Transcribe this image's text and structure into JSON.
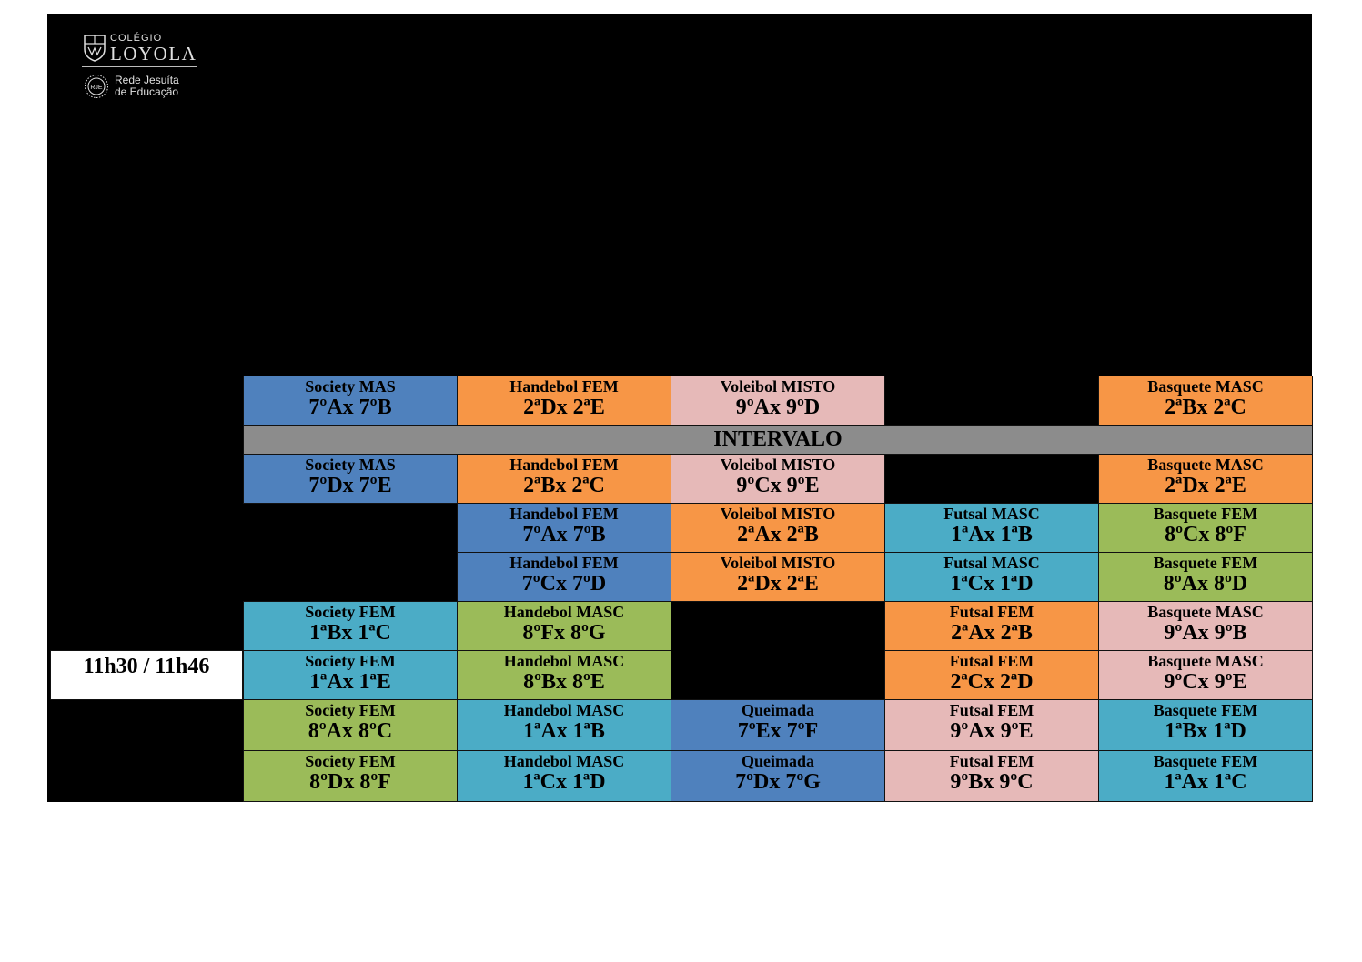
{
  "logo": {
    "college": "COLÉGIO",
    "name": "LOYOLA",
    "network_line1": "Rede Jesuíta",
    "network_line2": "de Educação",
    "seal_text": "RJE"
  },
  "break_label": "INTERVALO",
  "time_label": "11h30 / 11h46",
  "colors": {
    "blue": "#4f81bd",
    "orange": "#f79646",
    "pink": "#e6b9b8",
    "teal": "#4bacc6",
    "green": "#9bbb59",
    "gray": "#8c8c8c"
  },
  "rows": [
    {
      "cells": [
        {
          "sport": "Society MAS",
          "teams": "7ºAx 7ºB"
        },
        {
          "sport": "Handebol FEM",
          "teams": "2ªDx 2ªE"
        },
        {
          "sport": "Voleibol MISTO",
          "teams": "9ºAx 9ºD"
        },
        null,
        {
          "sport": "Basquete MASC",
          "teams": "2ªBx 2ªC"
        }
      ]
    },
    {
      "cells": [
        {
          "sport": "Society MAS",
          "teams": "7ºDx 7ºE"
        },
        {
          "sport": "Handebol FEM",
          "teams": "2ªBx 2ªC"
        },
        {
          "sport": "Voleibol MISTO",
          "teams": "9ºCx 9ºE"
        },
        null,
        {
          "sport": "Basquete MASC",
          "teams": "2ªDx 2ªE"
        }
      ]
    },
    {
      "cells": [
        null,
        {
          "sport": "Handebol FEM",
          "teams": "7ºAx 7ºB"
        },
        {
          "sport": "Voleibol MISTO",
          "teams": "2ªAx 2ªB"
        },
        {
          "sport": "Futsal MASC",
          "teams": "1ªAx 1ªB"
        },
        {
          "sport": "Basquete FEM",
          "teams": "8ºCx 8ºF"
        }
      ]
    },
    {
      "cells": [
        null,
        {
          "sport": "Handebol FEM",
          "teams": "7ºCx 7ºD"
        },
        {
          "sport": "Voleibol MISTO",
          "teams": "2ªDx 2ªE"
        },
        {
          "sport": "Futsal MASC",
          "teams": "1ªCx 1ªD"
        },
        {
          "sport": "Basquete FEM",
          "teams": "8ºAx 8ºD"
        }
      ]
    },
    {
      "cells": [
        {
          "sport": "Society FEM",
          "teams": "1ªBx 1ªC"
        },
        {
          "sport": "Handebol MASC",
          "teams": "8ºFx 8ºG"
        },
        null,
        {
          "sport": "Futsal FEM",
          "teams": "2ªAx 2ªB"
        },
        {
          "sport": "Basquete MASC",
          "teams": "9ºAx 9ºB"
        }
      ]
    },
    {
      "cells": [
        {
          "sport": "Society FEM",
          "teams": "1ªAx 1ªE"
        },
        {
          "sport": "Handebol MASC",
          "teams": "8ºBx 8ºE"
        },
        null,
        {
          "sport": "Futsal FEM",
          "teams": "2ªCx 2ªD"
        },
        {
          "sport": "Basquete MASC",
          "teams": "9ºCx 9ºE"
        }
      ]
    },
    {
      "cells": [
        {
          "sport": "Society FEM",
          "teams": "8ºAx 8ºC"
        },
        {
          "sport": "Handebol MASC",
          "teams": "1ªAx 1ªB"
        },
        {
          "sport": "Queimada",
          "teams": "7ºEx 7ºF"
        },
        {
          "sport": "Futsal FEM",
          "teams": "9ºAx 9ºE"
        },
        {
          "sport": "Basquete FEM",
          "teams": "1ªBx 1ªD"
        }
      ]
    },
    {
      "cells": [
        {
          "sport": "Society FEM",
          "teams": "8ºDx 8ºF"
        },
        {
          "sport": "Handebol MASC",
          "teams": "1ªCx 1ªD"
        },
        {
          "sport": "Queimada",
          "teams": "7ºDx 7ºG"
        },
        {
          "sport": "Futsal FEM",
          "teams": "9ºBx 9ºC"
        },
        {
          "sport": "Basquete FEM",
          "teams": "1ªAx 1ªC"
        }
      ]
    }
  ]
}
